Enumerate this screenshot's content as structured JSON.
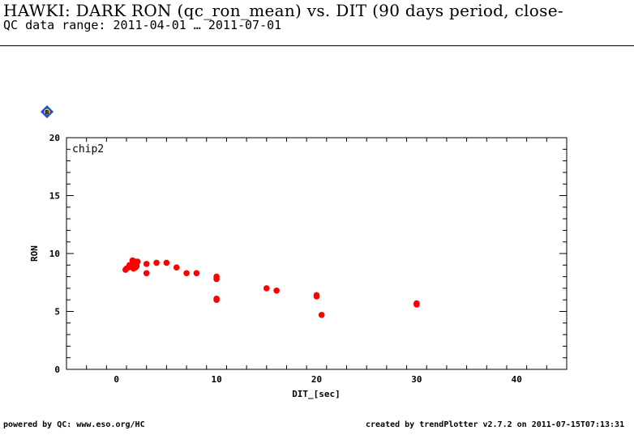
{
  "header": {
    "title": "HAWKI: DARK RON (qc_ron_mean) vs. DIT (90 days period, close-",
    "subtitle": "QC data range: 2011-04-01 … 2011-07-01"
  },
  "badge": {
    "label": "B",
    "color": "#1a4fd0"
  },
  "footer": {
    "left": "powered by QC: www.eso.org/HC",
    "right": "created by trendPlotter v2.7.2 on 2011-07-15T07:13:31"
  },
  "chart_data": {
    "type": "scatter",
    "panel_label": "chip2",
    "xlabel": "DIT_[sec]",
    "ylabel": "RON",
    "xlim": [
      -5,
      45
    ],
    "ylim": [
      0,
      20
    ],
    "x_ticks": [
      0,
      10,
      20,
      30,
      40
    ],
    "y_ticks": [
      0,
      5,
      10,
      15,
      20
    ],
    "color": "#ff0000",
    "x": [
      0.9,
      1.0,
      1.2,
      1.3,
      1.5,
      1.6,
      1.7,
      1.8,
      1.9,
      2.0,
      2.0,
      2.1,
      1.7,
      1.9,
      3.0,
      3.0,
      4.0,
      5.0,
      6.0,
      7.0,
      8.0,
      10.0,
      10.0,
      10.0,
      10.0,
      15.0,
      16.0,
      20.0,
      20.0,
      20.5,
      30.0,
      30.0
    ],
    "y": [
      8.6,
      8.7,
      8.8,
      9.0,
      8.9,
      9.4,
      9.2,
      9.0,
      9.3,
      9.1,
      8.9,
      9.3,
      8.7,
      8.8,
      9.1,
      8.3,
      9.2,
      9.2,
      8.8,
      8.3,
      8.3,
      8.0,
      7.8,
      6.1,
      6.0,
      7.0,
      6.8,
      6.4,
      6.3,
      4.7,
      5.7,
      5.6
    ]
  }
}
